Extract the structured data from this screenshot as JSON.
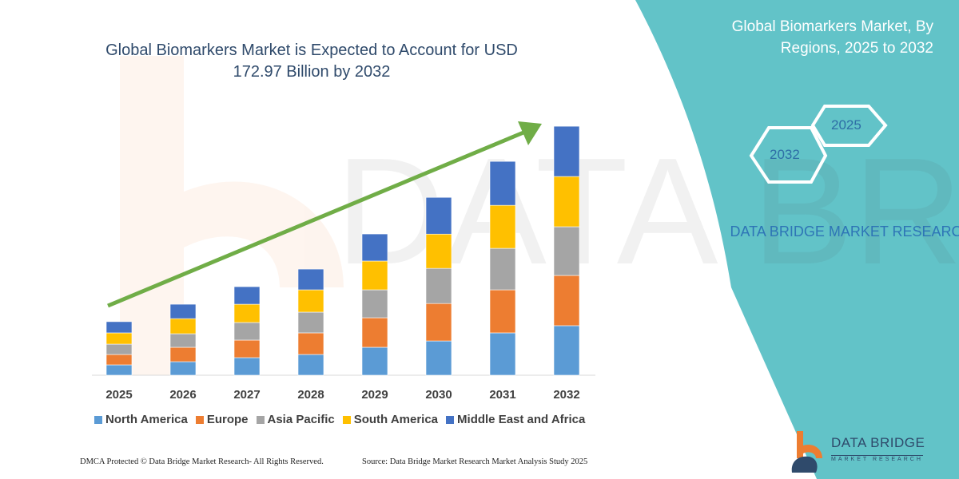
{
  "header": {
    "title": "Global Biomarkers Market is Expected to Account for USD 172.97 Billion by 2032",
    "side_title": "Global Biomarkers Market, By Regions, 2025 to 2032"
  },
  "side_panel": {
    "hex_labels": [
      "2025",
      "2032"
    ],
    "brand_text": "DATA BRIDGE MARKET RESEARCH",
    "color": "#62c3c8"
  },
  "footer": {
    "copyright": "DMCA Protected © Data Bridge Market Research-  All Rights Reserved.",
    "source": "Source: Data Bridge Market Research  Market Analysis Study 2025"
  },
  "logo": {
    "name": "DATA BRIDGE",
    "sub": "MARKET RESEARCH"
  },
  "chart_data": {
    "type": "bar",
    "stacked": true,
    "title": "Global Biomarkers Market is Expected to Account for USD 172.97 Billion by 2032",
    "categories": [
      "2025",
      "2026",
      "2027",
      "2028",
      "2029",
      "2030",
      "2031",
      "2032"
    ],
    "ylim": [
      0,
      180
    ],
    "grid": false,
    "legend_position": "bottom",
    "trend_arrow": true,
    "series": [
      {
        "name": "North America",
        "color": "#5b9bd5",
        "values": [
          7.2,
          9.4,
          12.2,
          14.4,
          19.4,
          23.8,
          29.4,
          34.4
        ]
      },
      {
        "name": "Europe",
        "color": "#ed7d31",
        "values": [
          7.2,
          10.0,
          12.2,
          15.0,
          20.5,
          26.0,
          29.9,
          34.9
        ]
      },
      {
        "name": "Asia Pacific",
        "color": "#a5a5a5",
        "values": [
          7.2,
          9.4,
          12.2,
          14.4,
          19.4,
          24.4,
          28.8,
          33.8
        ]
      },
      {
        "name": "South America",
        "color": "#ffc000",
        "values": [
          7.8,
          10.5,
          12.7,
          15.5,
          20.0,
          23.8,
          29.9,
          34.9
        ]
      },
      {
        "name": "Middle East and Africa",
        "color": "#4472c4",
        "values": [
          7.8,
          10.0,
          12.2,
          14.4,
          18.8,
          25.5,
          30.5,
          34.9
        ]
      }
    ]
  }
}
